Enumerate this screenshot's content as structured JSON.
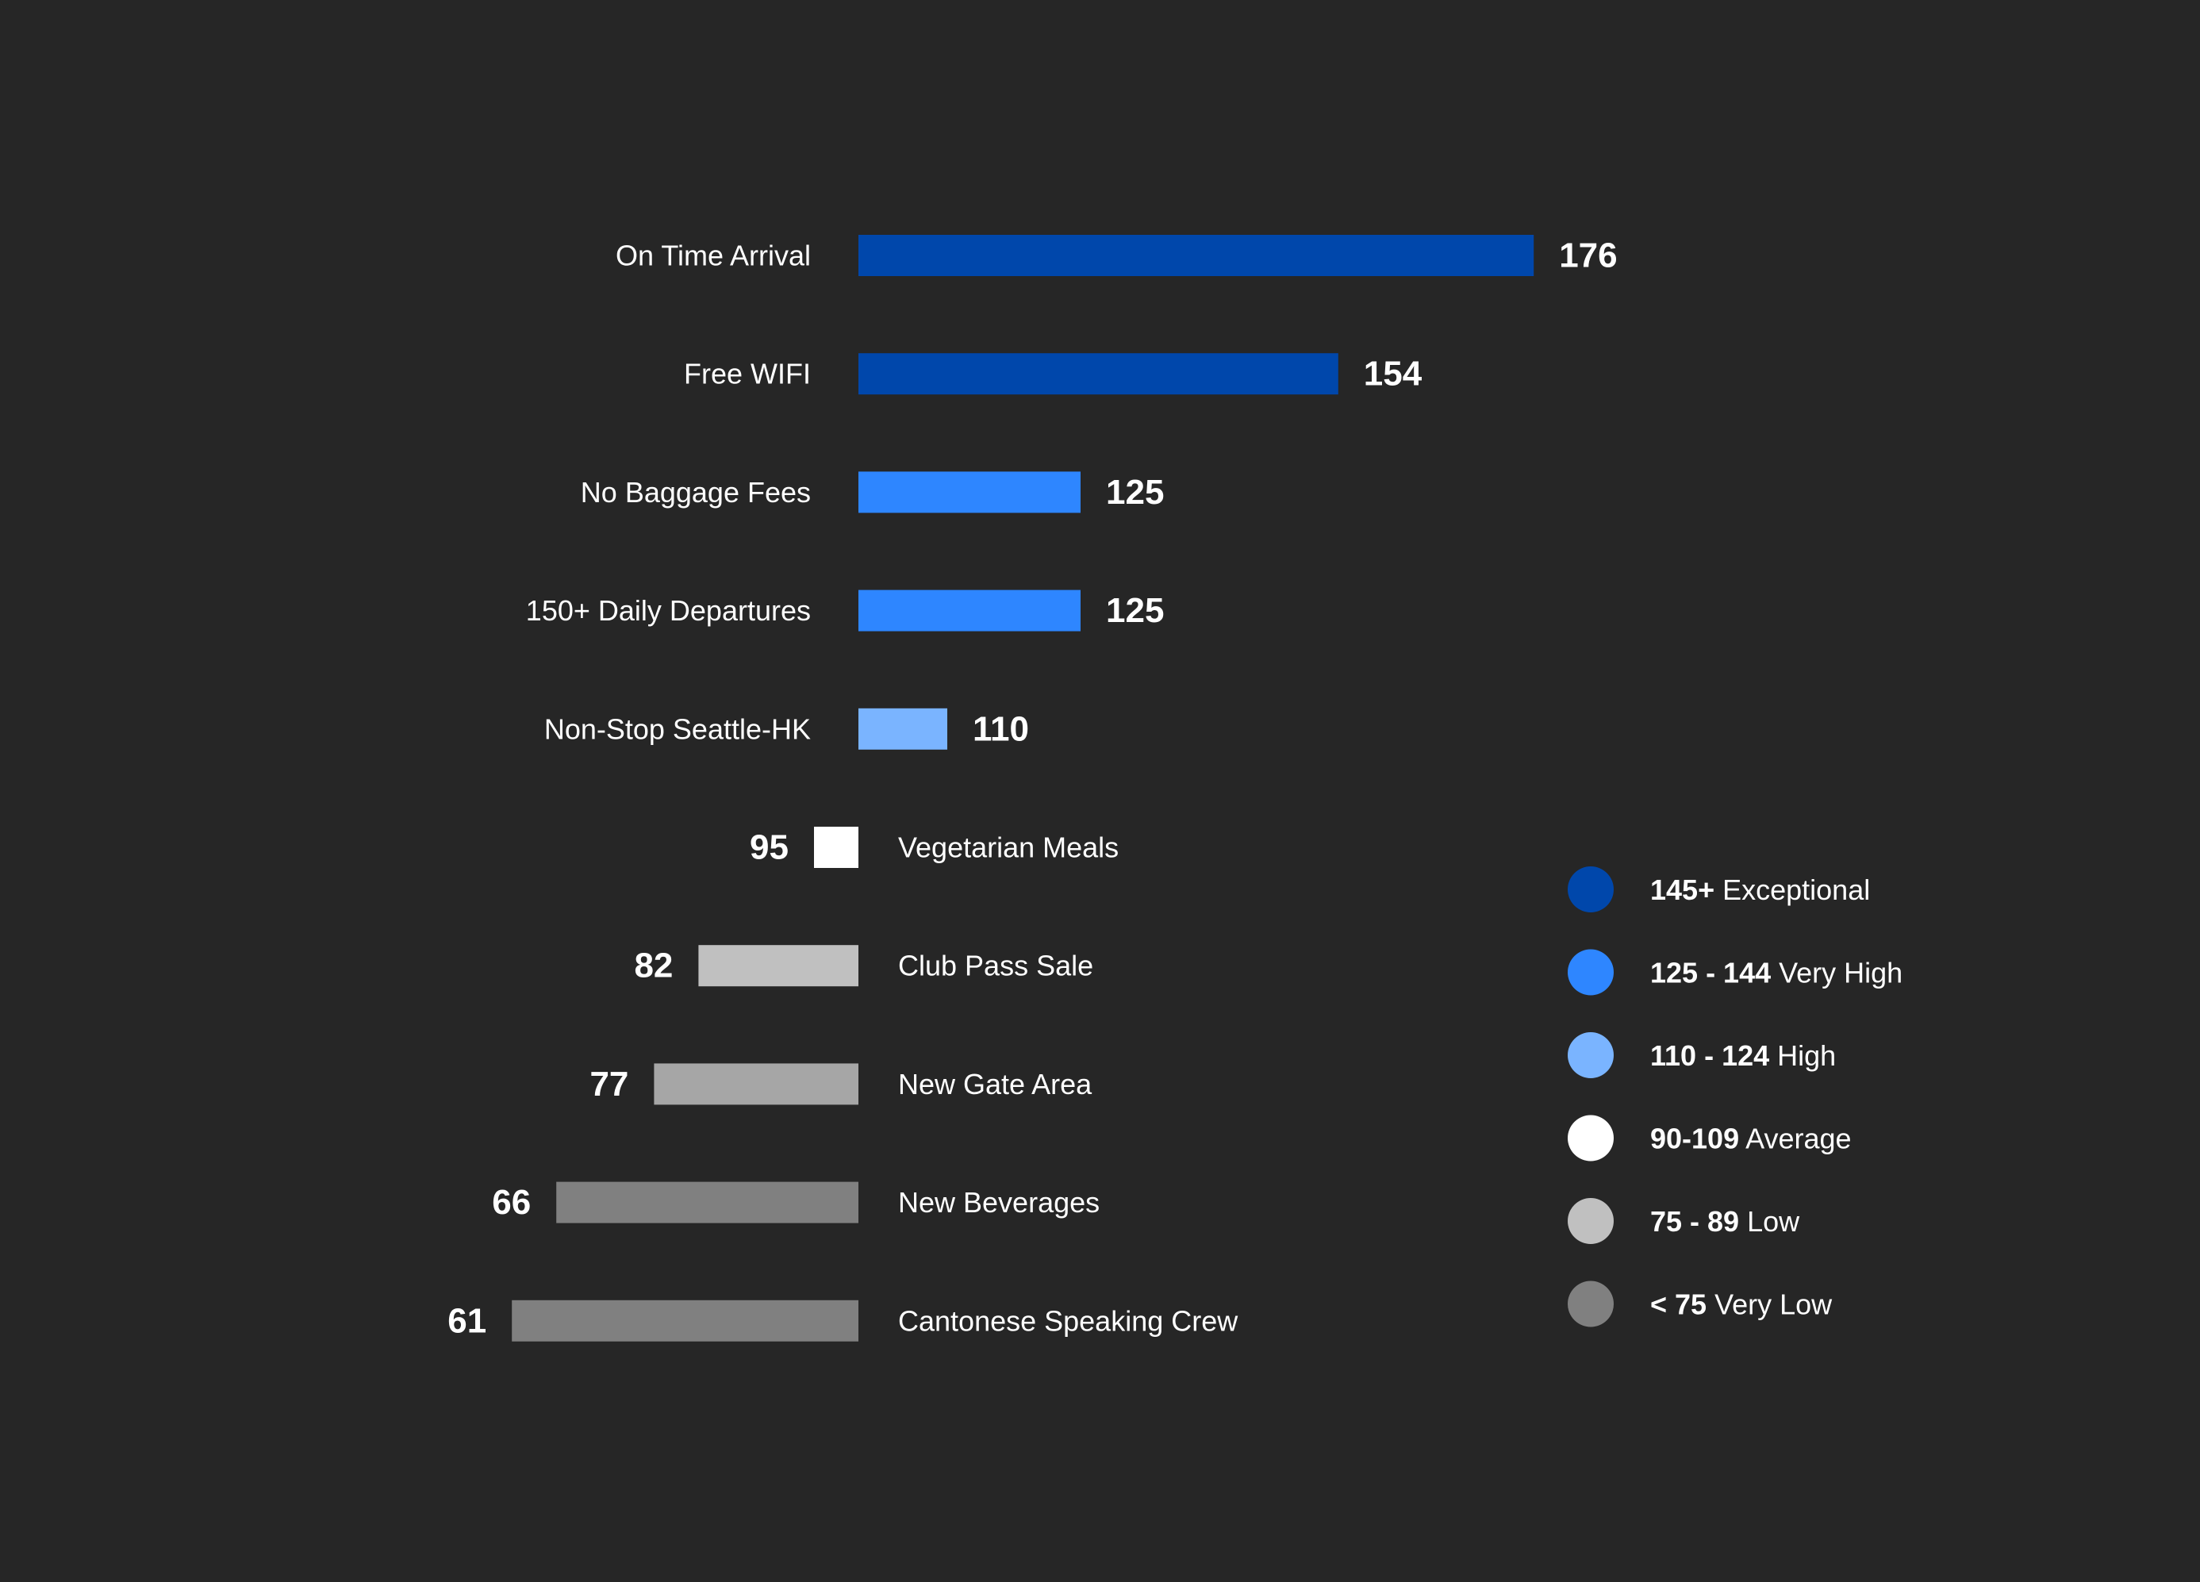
{
  "chart_data": {
    "type": "bar",
    "orientation": "diverging-horizontal",
    "baseline": 100,
    "categories": [
      "On Time Arrival",
      "Free WIFI",
      "No Baggage Fees",
      "150+ Daily Departures",
      "Non-Stop Seattle-HK",
      "Vegetarian Meals",
      "Club Pass Sale",
      "New Gate Area",
      "New Beverages",
      "Cantonese Speaking Crew"
    ],
    "values": [
      176,
      154,
      125,
      125,
      110,
      95,
      82,
      77,
      66,
      61
    ],
    "value_labels": [
      "176",
      "154",
      "125",
      "125",
      "110",
      "95",
      "82",
      "77",
      "66",
      "61"
    ],
    "bar_colors": [
      "#0047AB",
      "#0047AB",
      "#2E86FF",
      "#2E86FF",
      "#7AB4FF",
      "#FFFFFF",
      "#C0C0C0",
      "#A6A6A6",
      "#808080",
      "#808080"
    ],
    "legend_position": "right",
    "legend": [
      {
        "bold": "145+",
        "text": " Exceptional",
        "color": "#0047AB"
      },
      {
        "bold": "125 - 144",
        "text": " Very High",
        "color": "#2E86FF"
      },
      {
        "bold": "110 - 124",
        "text": " High",
        "color": "#7AB4FF"
      },
      {
        "bold": "90-109",
        "text": " Average",
        "color": "#FFFFFF"
      },
      {
        "bold": "75 - 89",
        "text": " Low",
        "color": "#C0C0C0"
      },
      {
        "bold": "< 75",
        "text": " Very Low",
        "color": "#808080"
      }
    ],
    "title": "",
    "xlabel": "",
    "ylabel": "",
    "grid": false
  }
}
